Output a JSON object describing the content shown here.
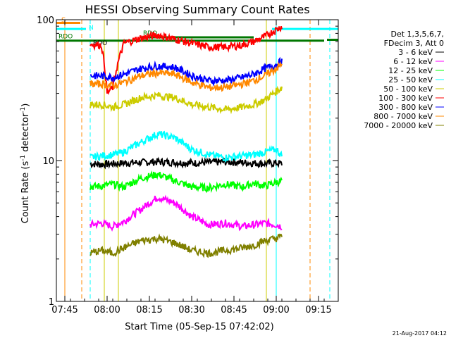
{
  "chart_data": {
    "type": "line",
    "title": "HESSI Observing Summary Count Rates",
    "xlabel": "Start Time (05-Sep-15 07:42:02)",
    "ylabel_main": "Count Rate (s",
    "ylabel_sup1": "-1",
    "ylabel_mid": " detector",
    "ylabel_sup2": "-1",
    "ylabel_end": ")",
    "y_scale": "log",
    "ylim": [
      1,
      100
    ],
    "xlim_minutes": [
      0,
      100
    ],
    "x_ticks": [
      {
        "label": "07:45",
        "minute": 3
      },
      {
        "label": "08:00",
        "minute": 18
      },
      {
        "label": "08:15",
        "minute": 33
      },
      {
        "label": "08:30",
        "minute": 48
      },
      {
        "label": "08:45",
        "minute": 63
      },
      {
        "label": "09:00",
        "minute": 78
      },
      {
        "label": "09:15",
        "minute": 93
      }
    ],
    "y_ticks": [
      {
        "label": "1",
        "value": 1
      },
      {
        "label": "10",
        "value": 10
      },
      {
        "label": "100",
        "value": 100
      }
    ],
    "legend": {
      "header": [
        "Det 1,3,5,6,7,",
        "FDecim 3, Att 0"
      ],
      "entries": [
        {
          "name": "3 - 6 keV",
          "color": "#000000"
        },
        {
          "name": "6 - 12 keV",
          "color": "#ff00ff"
        },
        {
          "name": "12 - 25 keV",
          "color": "#00ff00"
        },
        {
          "name": "25 - 50 keV",
          "color": "#00ffff"
        },
        {
          "name": "50 - 100 keV",
          "color": "#cccc00"
        },
        {
          "name": "100 - 300 keV",
          "color": "#ff0000"
        },
        {
          "name": "300 - 800 keV",
          "color": "#0000ff"
        },
        {
          "name": "800 - 7000 keV",
          "color": "#ff8800"
        },
        {
          "name": "7000 - 20000 keV",
          "color": "#808000"
        }
      ]
    },
    "series": [
      {
        "name": "3 - 6 keV",
        "color": "#000000",
        "x": [
          12,
          16,
          20,
          24,
          30,
          36,
          42,
          48,
          54,
          60,
          66,
          70,
          74,
          78,
          80
        ],
        "y": [
          9.5,
          9.4,
          9.5,
          9.6,
          9.7,
          9.8,
          9.7,
          9.6,
          9.7,
          9.8,
          9.7,
          9.6,
          9.5,
          9.6,
          9.5
        ]
      },
      {
        "name": "6 - 12 keV",
        "color": "#ff00ff",
        "x": [
          12,
          16,
          20,
          24,
          30,
          36,
          42,
          48,
          54,
          60,
          66,
          70,
          74,
          78,
          80
        ],
        "y": [
          3.5,
          3.6,
          3.4,
          3.7,
          4.5,
          5.5,
          5.0,
          4.0,
          3.5,
          3.6,
          3.4,
          3.5,
          3.6,
          3.5,
          3.4
        ]
      },
      {
        "name": "12 - 25 keV",
        "color": "#00ff00",
        "x": [
          12,
          16,
          20,
          24,
          30,
          36,
          42,
          48,
          54,
          60,
          66,
          70,
          74,
          78,
          80
        ],
        "y": [
          6.5,
          6.6,
          6.8,
          6.5,
          7.5,
          8.0,
          7.2,
          6.5,
          6.4,
          6.8,
          6.5,
          6.9,
          6.6,
          7.0,
          7.2
        ]
      },
      {
        "name": "25 - 50 keV",
        "color": "#00ffff",
        "x": [
          12,
          16,
          20,
          24,
          30,
          36,
          42,
          48,
          54,
          60,
          66,
          70,
          74,
          78,
          80
        ],
        "y": [
          10.5,
          10.8,
          11.0,
          11.5,
          13.5,
          15.5,
          14.5,
          12.0,
          11.0,
          10.5,
          10.8,
          11.0,
          11.5,
          12.0,
          10.8
        ]
      },
      {
        "name": "50 - 100 keV",
        "color": "#cccc00",
        "x": [
          12,
          16,
          20,
          24,
          30,
          36,
          42,
          48,
          54,
          60,
          66,
          70,
          74,
          78,
          80
        ],
        "y": [
          25,
          25,
          24,
          25,
          28,
          29,
          28,
          25,
          24,
          23,
          24,
          25,
          27,
          31,
          33
        ]
      },
      {
        "name": "100 - 300 keV",
        "color": "#ff0000",
        "x": [
          12,
          16,
          18,
          20,
          24,
          30,
          36,
          42,
          48,
          54,
          60,
          66,
          70,
          74,
          78,
          80
        ],
        "y": [
          67,
          66,
          30,
          33,
          68,
          74,
          78,
          73,
          68,
          64,
          64,
          66,
          70,
          76,
          85,
          90
        ]
      },
      {
        "name": "300 - 800 keV",
        "color": "#0000ff",
        "x": [
          12,
          16,
          20,
          24,
          30,
          36,
          42,
          48,
          54,
          60,
          66,
          70,
          74,
          78,
          80
        ],
        "y": [
          40,
          40,
          39,
          41,
          45,
          47,
          46,
          40,
          37,
          37,
          39,
          41,
          45,
          48,
          51
        ]
      },
      {
        "name": "800 - 7000 keV",
        "color": "#ff8800",
        "x": [
          12,
          16,
          20,
          24,
          30,
          36,
          42,
          48,
          54,
          60,
          66,
          70,
          74,
          78,
          80
        ],
        "y": [
          35,
          35,
          34,
          36,
          40,
          42,
          41,
          36,
          33,
          33,
          35,
          37,
          40,
          45,
          48
        ]
      },
      {
        "name": "7000 - 20000 keV",
        "color": "#808000",
        "x": [
          12,
          16,
          20,
          24,
          30,
          36,
          42,
          48,
          54,
          60,
          66,
          70,
          74,
          78,
          80
        ],
        "y": [
          2.2,
          2.3,
          2.2,
          2.4,
          2.7,
          2.8,
          2.6,
          2.3,
          2.2,
          2.3,
          2.4,
          2.5,
          2.7,
          2.8,
          2.9
        ]
      }
    ],
    "annotations": {
      "saa_bar": {
        "label": "S",
        "color": "#ff8800",
        "x_start": 0,
        "x_end": 8.5,
        "y": 95
      },
      "night_bar": {
        "label": "N",
        "color": "#00ffff",
        "segments": [
          [
            0,
            10.5
          ],
          [
            76.5,
            100
          ]
        ],
        "y": 86
      },
      "rdo_bars": {
        "color": "#007700",
        "segments": [
          {
            "label": "RDO",
            "x_start": 0,
            "x_end": 95,
            "y": 71
          },
          {
            "label": "RDO",
            "x_start": 30,
            "x_end": 70,
            "y": 75
          },
          {
            "label": "",
            "x_start": 96,
            "x_end": 100,
            "y": 72
          }
        ]
      },
      "rdo_label_2": "RDO",
      "vlines": [
        {
          "x": 0,
          "color": "#00ffff",
          "style": "solid"
        },
        {
          "x": 3,
          "color": "#ff8800",
          "style": "solid"
        },
        {
          "x": 9,
          "color": "#ff8800",
          "style": "dashed"
        },
        {
          "x": 12,
          "color": "#00ffff",
          "style": "dashed"
        },
        {
          "x": 17,
          "color": "#cccc00",
          "style": "solid"
        },
        {
          "x": 22,
          "color": "#cccc00",
          "style": "solid"
        },
        {
          "x": 74.5,
          "color": "#cccc00",
          "style": "solid"
        },
        {
          "x": 78,
          "color": "#00ffff",
          "style": "solid"
        },
        {
          "x": 90,
          "color": "#ff8800",
          "style": "dashed"
        },
        {
          "x": 97,
          "color": "#00ffff",
          "style": "dashed"
        }
      ]
    }
  },
  "footer_date": "21-Aug-2017 04:12"
}
